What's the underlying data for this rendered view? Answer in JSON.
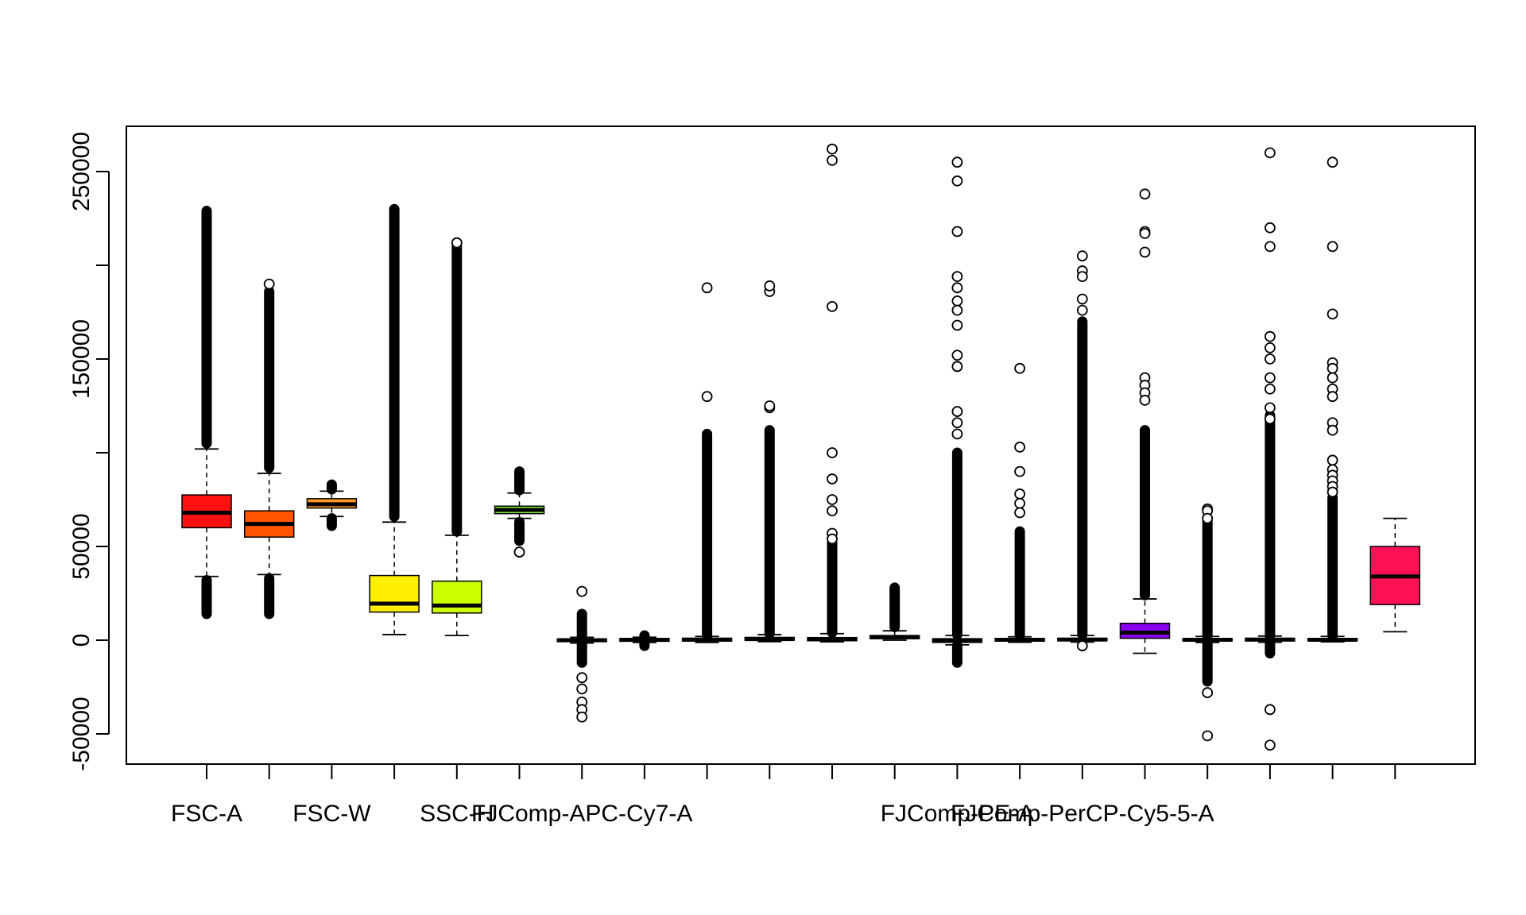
{
  "chart_data": {
    "type": "box",
    "title": "",
    "xlabel": "",
    "ylabel": "",
    "ylim": [
      -68000,
      275000
    ],
    "y_ticks": [
      -50000,
      0,
      50000,
      150000,
      250000
    ],
    "y_tick_labels": [
      "-50000",
      "0",
      "50000",
      "150000",
      "250000"
    ],
    "y_minor_ticks": [
      100000,
      200000
    ],
    "x_tick_labels": [
      {
        "index": 0,
        "label": "FSC-A"
      },
      {
        "index": 2,
        "label": "FSC-W"
      },
      {
        "index": 4,
        "label": "SSC-H"
      },
      {
        "index": 6,
        "label": "FJComp-APC-Cy7-A"
      },
      {
        "index": 12,
        "label": "FJComp-PE-A"
      },
      {
        "index": 14,
        "label": "FJComp-PerCP-Cy5-5-A"
      }
    ],
    "series": [
      {
        "color": "#FF1111",
        "q1": 60000,
        "median": 68000,
        "q3": 77500,
        "whisker_low": 34000,
        "whisker_high": 102000,
        "outliers_high": [
          [
            105000,
            229000
          ]
        ],
        "outliers_low": [
          [
            14000,
            32000
          ]
        ],
        "points": []
      },
      {
        "color": "#FF5500",
        "q1": 55000,
        "median": 62000,
        "q3": 69000,
        "whisker_low": 35000,
        "whisker_high": 89000,
        "outliers_high": [
          [
            92000,
            186000
          ]
        ],
        "outliers_low": [
          [
            14000,
            33000
          ]
        ],
        "points": [
          190000
        ]
      },
      {
        "color": "#FF9A22",
        "q1": 70500,
        "median": 72500,
        "q3": 75500,
        "whisker_low": 66000,
        "whisker_high": 79500,
        "outliers_high": [
          [
            80500,
            83000
          ]
        ],
        "outliers_low": [
          [
            61000,
            65000
          ]
        ],
        "points": []
      },
      {
        "color": "#FFEE00",
        "q1": 15000,
        "median": 19500,
        "q3": 34500,
        "whisker_low": 3000,
        "whisker_high": 63000,
        "outliers_high": [
          [
            66000,
            230000
          ]
        ],
        "outliers_low": [],
        "points": []
      },
      {
        "color": "#CCFF00",
        "q1": 14500,
        "median": 18500,
        "q3": 31500,
        "whisker_low": 2500,
        "whisker_high": 56000,
        "outliers_high": [
          [
            58000,
            210000
          ]
        ],
        "outliers_low": [],
        "points": [
          212000
        ]
      },
      {
        "color": "#88EE33",
        "q1": 67500,
        "median": 69500,
        "q3": 71500,
        "whisker_low": 65000,
        "whisker_high": 78500,
        "outliers_high": [
          [
            80000,
            90000
          ]
        ],
        "outliers_low": [
          [
            53000,
            63000
          ]
        ],
        "points": [
          47000
        ]
      },
      {
        "color": "#22DD55",
        "q1": -800,
        "median": 0,
        "q3": 600,
        "whisker_low": -1500,
        "whisker_high": 1500,
        "outliers_high": [
          [
            2000,
            14000
          ]
        ],
        "outliers_low": [
          [
            -12000,
            -2000
          ]
        ],
        "points": [
          26000,
          -20000,
          -26000,
          -33000,
          -37000,
          -41000
        ]
      },
      {
        "color": "#00DD99",
        "q1": -600,
        "median": 200,
        "q3": 900,
        "whisker_low": -1200,
        "whisker_high": 1600,
        "outliers_high": [
          [
            1800,
            2500
          ]
        ],
        "outliers_low": [
          [
            -3000,
            -1500
          ]
        ],
        "points": []
      },
      {
        "color": "#00DDDD",
        "q1": -500,
        "median": 300,
        "q3": 1000,
        "whisker_low": -1200,
        "whisker_high": 2000,
        "outliers_high": [
          [
            2500,
            110000
          ]
        ],
        "outliers_low": [],
        "points": [
          188000,
          130000
        ]
      },
      {
        "color": "#00AAFF",
        "q1": 0,
        "median": 600,
        "q3": 1500,
        "whisker_low": -800,
        "whisker_high": 3000,
        "outliers_high": [
          [
            3500,
            112000
          ]
        ],
        "outliers_low": [],
        "points": [
          186000,
          189000,
          124000,
          125000
        ]
      },
      {
        "color": "#0066FF",
        "q1": -300,
        "median": 500,
        "q3": 1400,
        "whisker_low": -900,
        "whisker_high": 3500,
        "outliers_high": [
          [
            4000,
            52000
          ]
        ],
        "outliers_low": [],
        "points": [
          262000,
          256000,
          178000,
          100000,
          86000,
          75000,
          69000,
          57000,
          54000
        ]
      },
      {
        "color": "#0022FF",
        "q1": 800,
        "median": 1600,
        "q3": 2500,
        "whisker_low": 0,
        "whisker_high": 5000,
        "outliers_high": [
          [
            7000,
            28000
          ]
        ],
        "outliers_low": [],
        "points": []
      },
      {
        "color": "#2200FF",
        "q1": -1200,
        "median": 0,
        "q3": 800,
        "whisker_low": -2500,
        "whisker_high": 2500,
        "outliers_high": [
          [
            3000,
            100000
          ]
        ],
        "outliers_low": [
          [
            -12000,
            -3000
          ]
        ],
        "points": [
          255000,
          245000,
          218000,
          194000,
          188000,
          181000,
          176000,
          168000,
          152000,
          146000,
          122000,
          116000,
          110000
        ]
      },
      {
        "color": "#5500FF",
        "q1": -500,
        "median": 200,
        "q3": 900,
        "whisker_low": -1100,
        "whisker_high": 1800,
        "outliers_high": [
          [
            2000,
            58000
          ]
        ],
        "outliers_low": [],
        "points": [
          145000,
          103000,
          90000,
          78000,
          73000,
          68000
        ]
      },
      {
        "color": "#7711FF",
        "q1": -300,
        "median": 300,
        "q3": 1000,
        "whisker_low": -1000,
        "whisker_high": 2500,
        "outliers_high": [
          [
            3000,
            170000
          ]
        ],
        "outliers_low": [],
        "points": [
          205000,
          197000,
          194000,
          182000,
          176000,
          -3000
        ]
      },
      {
        "color": "#8800EE",
        "q1": 1000,
        "median": 4000,
        "q3": 9000,
        "whisker_low": -7000,
        "whisker_high": 22000,
        "outliers_high": [
          [
            24000,
            112000
          ]
        ],
        "outliers_low": [],
        "points": [
          238000,
          218000,
          217000,
          207000,
          140000,
          136000,
          132000,
          128000
        ]
      },
      {
        "color": "#CC00CC",
        "q1": -400,
        "median": 200,
        "q3": 900,
        "whisker_low": -1200,
        "whisker_high": 2000,
        "outliers_high": [
          [
            2500,
            64000
          ]
        ],
        "outliers_low": [
          [
            -22000,
            -2000
          ]
        ],
        "points": [
          70000,
          69000,
          65000,
          -28000,
          -51000
        ]
      },
      {
        "color": "#EE0099",
        "q1": -400,
        "median": 300,
        "q3": 1000,
        "whisker_low": -1100,
        "whisker_high": 2200,
        "outliers_high": [
          [
            2500,
            120000
          ]
        ],
        "outliers_low": [
          [
            -7000,
            -1500
          ]
        ],
        "points": [
          260000,
          220000,
          210000,
          162000,
          156000,
          150000,
          140000,
          134000,
          124000,
          118000,
          -37000,
          -56000
        ]
      },
      {
        "color": "#FF0088",
        "q1": -300,
        "median": 200,
        "q3": 900,
        "whisker_low": -900,
        "whisker_high": 2000,
        "outliers_high": [
          [
            2500,
            76000
          ]
        ],
        "outliers_low": [],
        "points": [
          255000,
          210000,
          174000,
          148000,
          145000,
          140000,
          134000,
          130000,
          116000,
          112000,
          96000,
          91000,
          88000,
          85000,
          82000,
          79000
        ]
      },
      {
        "color": "#FF1155",
        "q1": 19000,
        "median": 34000,
        "q3": 50000,
        "whisker_low": 4500,
        "whisker_high": 65000,
        "outliers_high": [],
        "outliers_low": [],
        "points": []
      }
    ]
  }
}
